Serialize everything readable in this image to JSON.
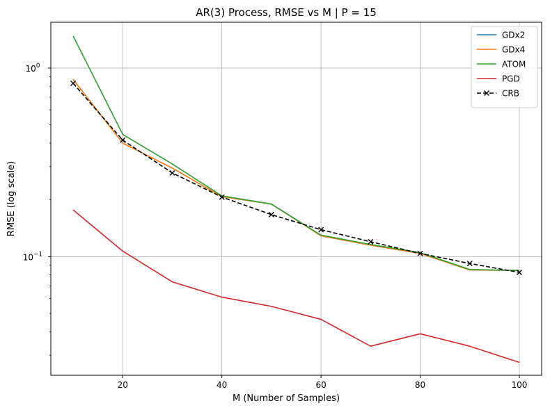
{
  "chart_data": {
    "type": "line",
    "title": "AR(3) Process, RMSE vs M | P = 15",
    "xlabel": "M (Number of Samples)",
    "ylabel": "RMSE (log scale)",
    "yscale": "log",
    "xlim": [
      5.5,
      104.5
    ],
    "ylim": [
      0.0235,
      1.75
    ],
    "grid": true,
    "legend_position": "top-right",
    "x": [
      10,
      20,
      30,
      40,
      50,
      60,
      70,
      80,
      90,
      100
    ],
    "xticks": [
      20,
      40,
      60,
      80,
      100
    ],
    "xtick_labels": [
      "20",
      "40",
      "60",
      "80",
      "100"
    ],
    "ytick_labels": [
      {
        "value": 1,
        "base": "10",
        "exp": "0"
      },
      {
        "value": 0.1,
        "base": "10",
        "exp": "−1"
      }
    ],
    "series": [
      {
        "name": "GDx2",
        "color": "#1f77b4",
        "style": "solid",
        "marker": "none",
        "values": [
          0.87,
          0.4,
          0.295,
          0.208,
          0.19,
          0.129,
          0.115,
          0.104,
          0.085,
          0.0845
        ]
      },
      {
        "name": "GDx4",
        "color": "#ff7f0e",
        "style": "solid",
        "marker": "none",
        "values": [
          0.87,
          0.4,
          0.295,
          0.208,
          0.19,
          0.129,
          0.115,
          0.104,
          0.085,
          0.0845
        ]
      },
      {
        "name": "ATOM",
        "color": "#2ca02c",
        "style": "solid",
        "marker": "none",
        "values": [
          1.48,
          0.445,
          0.31,
          0.21,
          0.19,
          0.13,
          0.116,
          0.105,
          0.0855,
          0.0845
        ]
      },
      {
        "name": "PGD",
        "color": "#d62728",
        "style": "solid",
        "marker": "none",
        "values": [
          0.177,
          0.107,
          0.0735,
          0.061,
          0.0545,
          0.0465,
          0.0335,
          0.039,
          0.0335,
          0.0275
        ]
      },
      {
        "name": "CRB",
        "color": "#000000",
        "style": "dashed",
        "marker": "x",
        "values": [
          0.83,
          0.415,
          0.278,
          0.207,
          0.167,
          0.139,
          0.12,
          0.104,
          0.092,
          0.0825
        ]
      }
    ]
  }
}
